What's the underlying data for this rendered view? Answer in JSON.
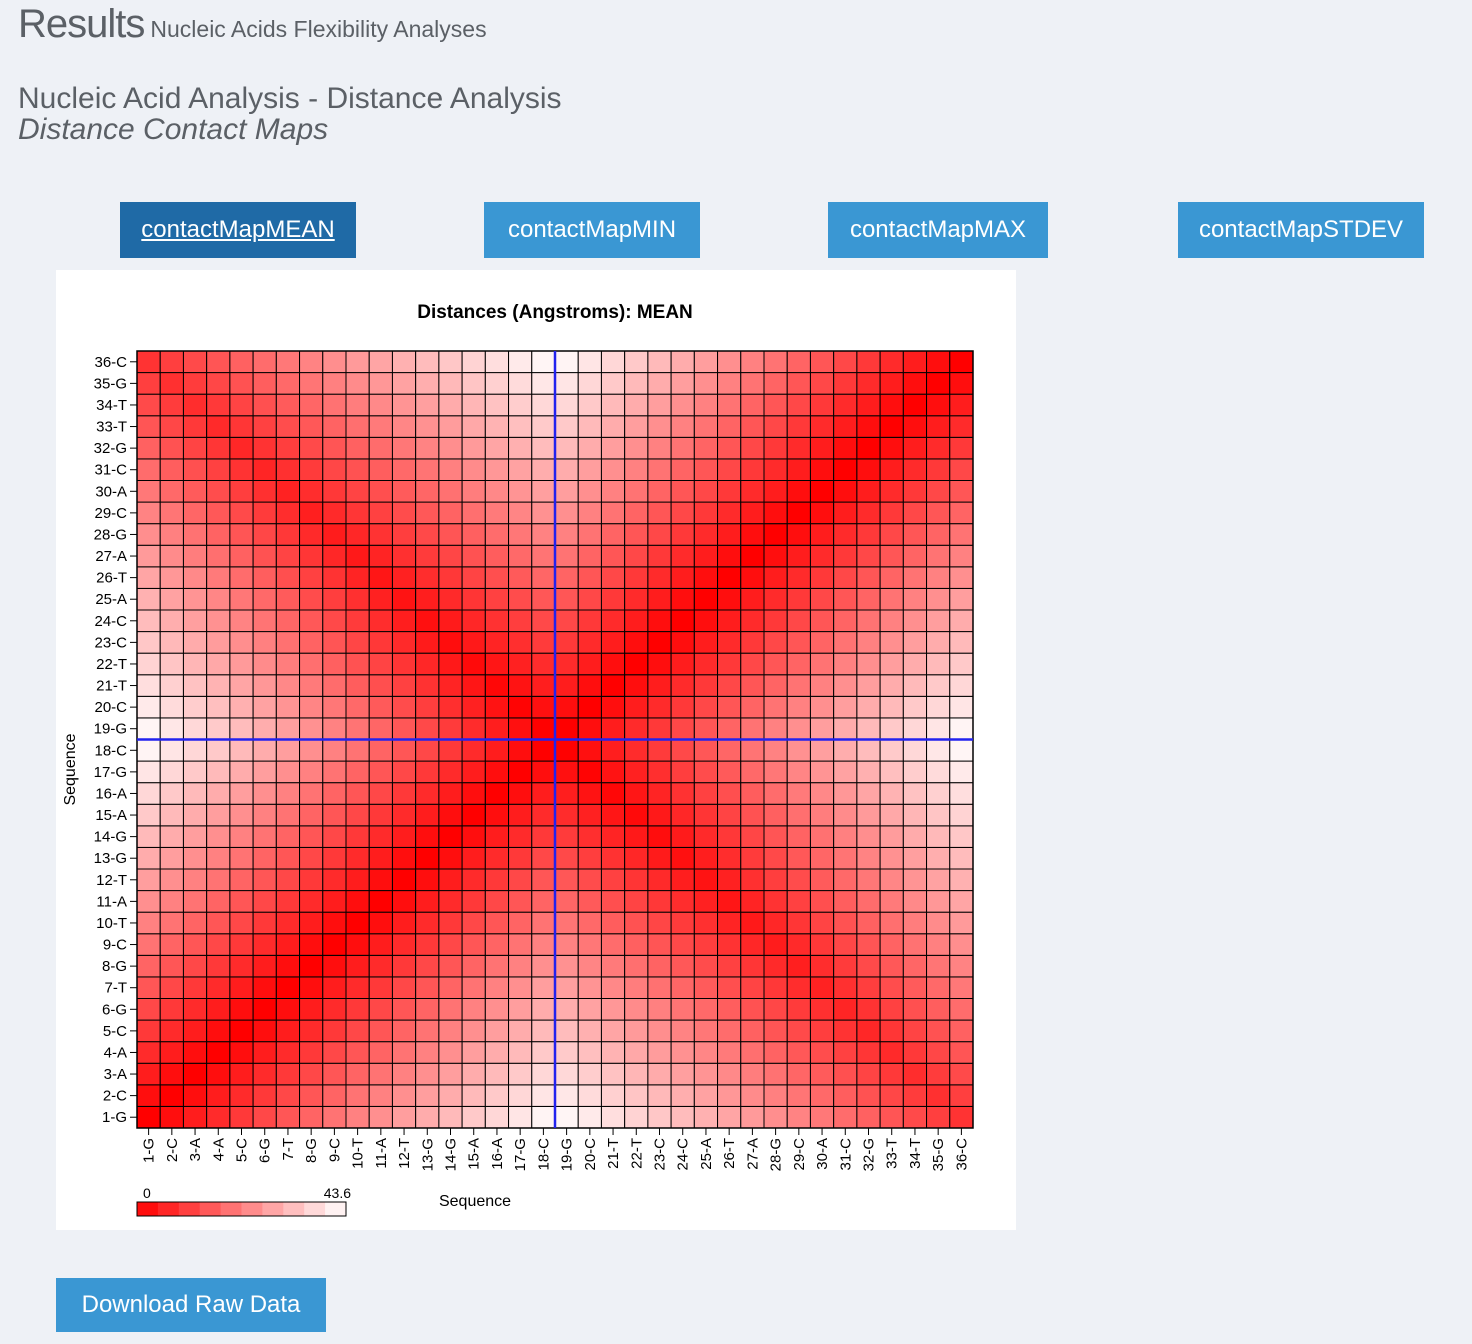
{
  "header": {
    "title": "Results",
    "subtitle": "Nucleic Acids Flexibility Analyses"
  },
  "section": {
    "title": "Nucleic Acid Analysis - Distance Analysis",
    "subtitle": "Distance Contact Maps"
  },
  "tabs": [
    {
      "label": "contactMapMEAN",
      "active": true
    },
    {
      "label": "contactMapMIN",
      "active": false
    },
    {
      "label": "contactMapMAX",
      "active": false
    },
    {
      "label": "contactMapSTDEV",
      "active": false
    }
  ],
  "download": {
    "label": "Download Raw Data"
  },
  "chart_data": {
    "type": "heatmap",
    "title": "Distances (Angstroms):  MEAN",
    "xlabel": "Sequence",
    "ylabel": "Sequence",
    "sequence": [
      "1-G",
      "2-C",
      "3-A",
      "4-A",
      "5-C",
      "6-G",
      "7-T",
      "8-G",
      "9-C",
      "10-T",
      "11-A",
      "12-T",
      "13-G",
      "14-G",
      "15-A",
      "16-A",
      "17-G",
      "18-C",
      "19-G",
      "20-C",
      "21-T",
      "22-T",
      "23-C",
      "24-C",
      "25-A",
      "26-T",
      "27-A",
      "28-G",
      "29-C",
      "30-A",
      "31-C",
      "32-G",
      "33-T",
      "34-T",
      "35-G",
      "36-C"
    ],
    "colorbar": {
      "min": 0,
      "max": 43.6,
      "min_label": "0",
      "max_label": "43.6",
      "low_color": "#ff0000",
      "high_color": "#ffffff"
    },
    "highlight": {
      "row": "18-C",
      "column": "18-C",
      "color": "#2222ee"
    }
  }
}
